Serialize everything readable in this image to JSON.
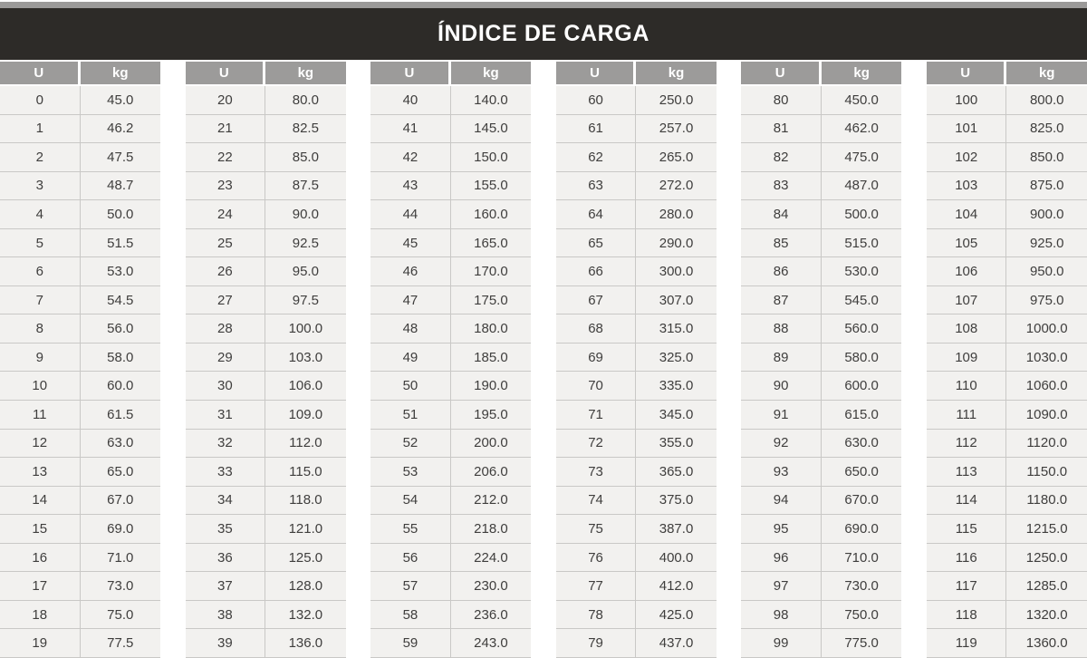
{
  "title": "ÍNDICE DE CARGA",
  "colors": {
    "title_band": "#2d2b28",
    "title_text": "#ffffff",
    "header_cell": "#9c9b9a",
    "header_text": "#ffffff",
    "cell_bg": "#f2f1ef",
    "row_border": "#c9c8c6",
    "cell_text": "#3f3e3d",
    "top_bar": "#9b9a99",
    "gap_bg": "#ffffff"
  },
  "table": {
    "u_header": "U",
    "kg_header": "kg",
    "groups": [
      {
        "u": [
          "0",
          "1",
          "2",
          "3",
          "4",
          "5",
          "6",
          "7",
          "8",
          "9",
          "10",
          "11",
          "12",
          "13",
          "14",
          "15",
          "16",
          "17",
          "18",
          "19"
        ],
        "kg": [
          "45.0",
          "46.2",
          "47.5",
          "48.7",
          "50.0",
          "51.5",
          "53.0",
          "54.5",
          "56.0",
          "58.0",
          "60.0",
          "61.5",
          "63.0",
          "65.0",
          "67.0",
          "69.0",
          "71.0",
          "73.0",
          "75.0",
          "77.5"
        ]
      },
      {
        "u": [
          "20",
          "21",
          "22",
          "23",
          "24",
          "25",
          "26",
          "27",
          "28",
          "29",
          "30",
          "31",
          "32",
          "33",
          "34",
          "35",
          "36",
          "37",
          "38",
          "39"
        ],
        "kg": [
          "80.0",
          "82.5",
          "85.0",
          "87.5",
          "90.0",
          "92.5",
          "95.0",
          "97.5",
          "100.0",
          "103.0",
          "106.0",
          "109.0",
          "112.0",
          "115.0",
          "118.0",
          "121.0",
          "125.0",
          "128.0",
          "132.0",
          "136.0"
        ]
      },
      {
        "u": [
          "40",
          "41",
          "42",
          "43",
          "44",
          "45",
          "46",
          "47",
          "48",
          "49",
          "50",
          "51",
          "52",
          "53",
          "54",
          "55",
          "56",
          "57",
          "58",
          "59"
        ],
        "kg": [
          "140.0",
          "145.0",
          "150.0",
          "155.0",
          "160.0",
          "165.0",
          "170.0",
          "175.0",
          "180.0",
          "185.0",
          "190.0",
          "195.0",
          "200.0",
          "206.0",
          "212.0",
          "218.0",
          "224.0",
          "230.0",
          "236.0",
          "243.0"
        ]
      },
      {
        "u": [
          "60",
          "61",
          "62",
          "63",
          "64",
          "65",
          "66",
          "67",
          "68",
          "69",
          "70",
          "71",
          "72",
          "73",
          "74",
          "75",
          "76",
          "77",
          "78",
          "79"
        ],
        "kg": [
          "250.0",
          "257.0",
          "265.0",
          "272.0",
          "280.0",
          "290.0",
          "300.0",
          "307.0",
          "315.0",
          "325.0",
          "335.0",
          "345.0",
          "355.0",
          "365.0",
          "375.0",
          "387.0",
          "400.0",
          "412.0",
          "425.0",
          "437.0"
        ]
      },
      {
        "u": [
          "80",
          "81",
          "82",
          "83",
          "84",
          "85",
          "86",
          "87",
          "88",
          "89",
          "90",
          "91",
          "92",
          "93",
          "94",
          "95",
          "96",
          "97",
          "98",
          "99"
        ],
        "kg": [
          "450.0",
          "462.0",
          "475.0",
          "487.0",
          "500.0",
          "515.0",
          "530.0",
          "545.0",
          "560.0",
          "580.0",
          "600.0",
          "615.0",
          "630.0",
          "650.0",
          "670.0",
          "690.0",
          "710.0",
          "730.0",
          "750.0",
          "775.0"
        ]
      },
      {
        "u": [
          "100",
          "101",
          "102",
          "103",
          "104",
          "105",
          "106",
          "107",
          "108",
          "109",
          "110",
          "111",
          "112",
          "113",
          "114",
          "115",
          "116",
          "117",
          "118",
          "119"
        ],
        "kg": [
          "800.0",
          "825.0",
          "850.0",
          "875.0",
          "900.0",
          "925.0",
          "950.0",
          "975.0",
          "1000.0",
          "1030.0",
          "1060.0",
          "1090.0",
          "1120.0",
          "1150.0",
          "1180.0",
          "1215.0",
          "1250.0",
          "1285.0",
          "1320.0",
          "1360.0"
        ]
      }
    ]
  }
}
